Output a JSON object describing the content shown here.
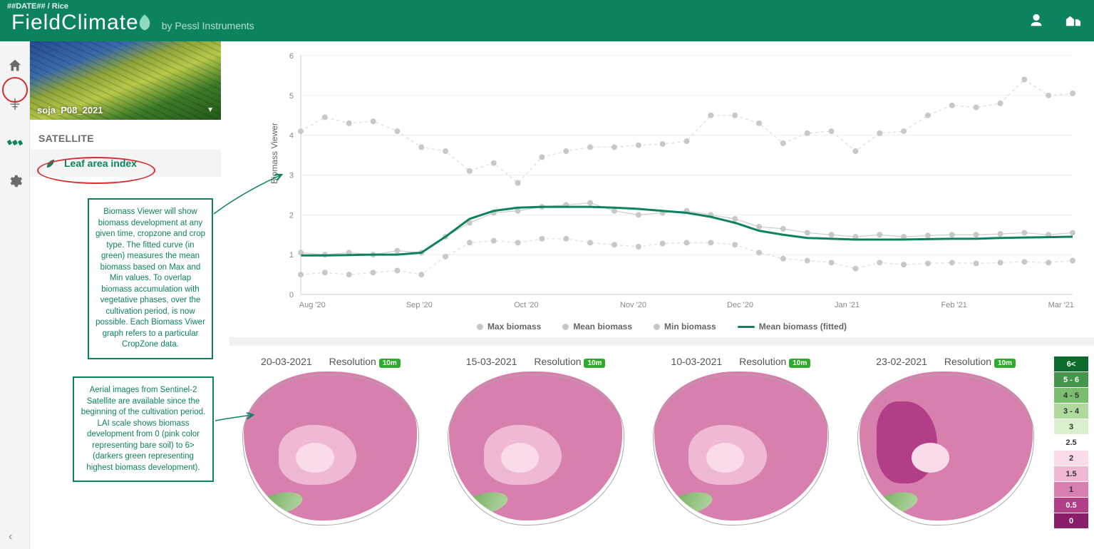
{
  "header": {
    "breadcrumb": "##DATE## / Rice",
    "logo_main": "FieldClimate",
    "logo_sub": "by Pessl Instruments"
  },
  "sidebar": {
    "field_name": "soja_P08_2021",
    "section_label": "SATELLITE",
    "lai_label": "Leaf area index",
    "info1": "Biomass Viewer will show biomass development at any given time, cropzone and crop type. The fitted curve (in green) measures the mean biomass based on Max and Min values. To overlap biomass accumulation with vegetative phases, over the cultivation period, is now possible. Each Biomass Viwer graph refers to a particular CropZone data.",
    "info2": "Aerial images from Sentinel-2 Satellite are available since the beginning of the cultivation period. LAI scale shows biomass development from 0 (pink color representing bare soil) to 6> (darkers green representing highest biomass development)."
  },
  "chart": {
    "type": "line",
    "y_label": "Biomass Viewer",
    "ylim": [
      0,
      6
    ],
    "yticks": [
      0,
      1,
      2,
      3,
      4,
      5,
      6
    ],
    "x_labels": [
      "Aug '20",
      "Sep '20",
      "Oct '20",
      "Nov '20",
      "Dec '20",
      "Jan '21",
      "Feb '21",
      "Mar '21"
    ],
    "grid_color": "#eeeeee",
    "background_color": "#ffffff",
    "point_color": "#c8c8c8",
    "point_line_color": "#dddddd",
    "point_radius": 4,
    "fitted_color": "#0d8261",
    "fitted_width": 3,
    "axis_fontsize": 11,
    "axis_color": "#888888",
    "series": {
      "max": [
        4.1,
        4.45,
        4.3,
        4.35,
        4.1,
        3.7,
        3.6,
        3.1,
        3.3,
        2.8,
        3.45,
        3.6,
        3.7,
        3.7,
        3.75,
        3.78,
        3.85,
        4.5,
        4.5,
        4.3,
        3.8,
        4.05,
        4.1,
        3.6,
        4.05,
        4.1,
        4.5,
        4.75,
        4.7,
        4.8,
        5.4,
        5.0,
        5.05
      ],
      "mean": [
        1.05,
        1.0,
        1.05,
        1.0,
        1.1,
        1.05,
        1.45,
        1.8,
        2.05,
        2.1,
        2.2,
        2.25,
        2.3,
        2.1,
        2.0,
        2.05,
        2.1,
        2.0,
        1.9,
        1.7,
        1.65,
        1.55,
        1.5,
        1.45,
        1.5,
        1.45,
        1.48,
        1.5,
        1.5,
        1.52,
        1.55,
        1.5,
        1.55
      ],
      "min": [
        0.5,
        0.55,
        0.5,
        0.55,
        0.6,
        0.5,
        0.95,
        1.3,
        1.35,
        1.3,
        1.4,
        1.4,
        1.3,
        1.25,
        1.2,
        1.28,
        1.3,
        1.3,
        1.25,
        1.05,
        0.9,
        0.85,
        0.8,
        0.65,
        0.8,
        0.75,
        0.78,
        0.8,
        0.78,
        0.8,
        0.82,
        0.8,
        0.85
      ],
      "fitted": [
        0.98,
        0.98,
        0.99,
        1.0,
        1.0,
        1.05,
        1.45,
        1.9,
        2.1,
        2.18,
        2.2,
        2.2,
        2.2,
        2.18,
        2.15,
        2.1,
        2.05,
        1.95,
        1.8,
        1.6,
        1.5,
        1.42,
        1.4,
        1.38,
        1.38,
        1.38,
        1.39,
        1.4,
        1.4,
        1.42,
        1.43,
        1.44,
        1.45
      ]
    },
    "legend": {
      "max": "Max biomass",
      "mean": "Mean biomass",
      "min": "Min biomass",
      "fitted": "Mean biomass (fitted)"
    }
  },
  "maps": {
    "resolution_label": "Resolution",
    "resolution_value": "10m",
    "tiles": [
      {
        "date": "20-03-2021",
        "tint": "light"
      },
      {
        "date": "15-03-2021",
        "tint": "light"
      },
      {
        "date": "10-03-2021",
        "tint": "mid"
      },
      {
        "date": "23-02-2021",
        "tint": "dark"
      }
    ]
  },
  "lai_scale": [
    {
      "label": "6<",
      "color": "#0d6b2e"
    },
    {
      "label": "5 - 6",
      "color": "#47944d"
    },
    {
      "label": "4 - 5",
      "color": "#7bbd6f"
    },
    {
      "label": "3 - 4",
      "color": "#aeda9d"
    },
    {
      "label": "3",
      "color": "#d9efce"
    },
    {
      "label": "2.5",
      "color": "#ffffff"
    },
    {
      "label": "2",
      "color": "#f9dbe9"
    },
    {
      "label": "1.5",
      "color": "#efb8d5"
    },
    {
      "label": "1",
      "color": "#d77fad"
    },
    {
      "label": "0.5",
      "color": "#b33e88"
    },
    {
      "label": "0",
      "color": "#8a1d69"
    }
  ],
  "annotation_color": "#d62c2c"
}
